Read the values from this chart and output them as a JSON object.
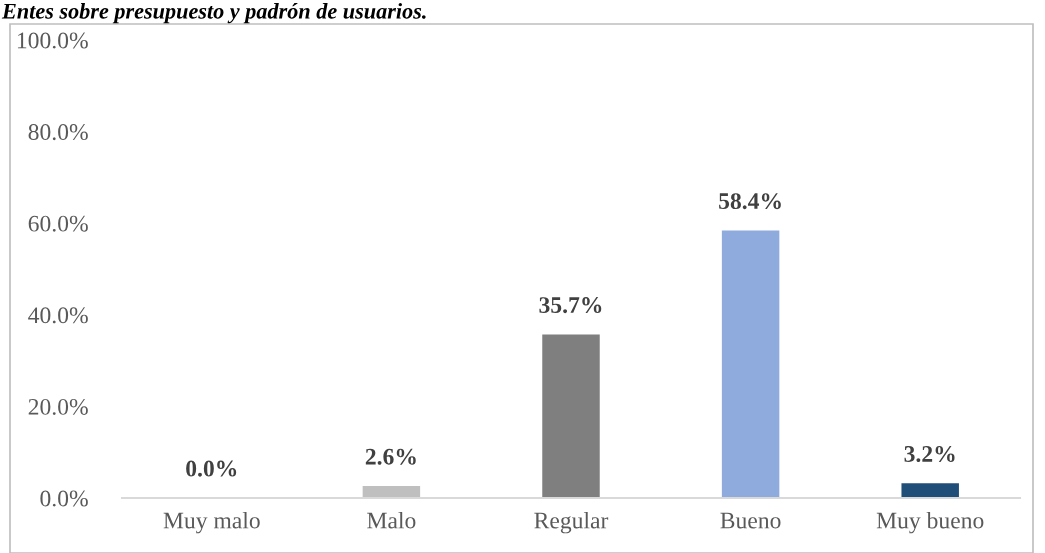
{
  "chart_data": {
    "type": "bar",
    "title": "Entes sobre presupuesto y padrón de usuarios.",
    "categories": [
      "Muy malo",
      "Malo",
      "Regular",
      "Bueno",
      "Muy bueno"
    ],
    "values": [
      0,
      2.6,
      35.7,
      58.4,
      3.2
    ],
    "colors": [
      "#a5a5a5",
      "#bfbfbf",
      "#7f7f7f",
      "#8faadc",
      "#1f4e79"
    ],
    "value_labels": [
      "0.0%",
      "2.6%",
      "35.7%",
      "58.4%",
      "3.2%"
    ],
    "ylim": [
      0,
      100
    ],
    "yticks": [
      {
        "value": 0,
        "label": "0.0%"
      },
      {
        "value": 20,
        "label": "20.0%"
      },
      {
        "value": 40,
        "label": "40.0%"
      },
      {
        "value": 60,
        "label": "60.0%"
      },
      {
        "value": 80,
        "label": "80.0%"
      },
      {
        "value": 100,
        "label": "100.0%"
      }
    ],
    "grid": false
  }
}
